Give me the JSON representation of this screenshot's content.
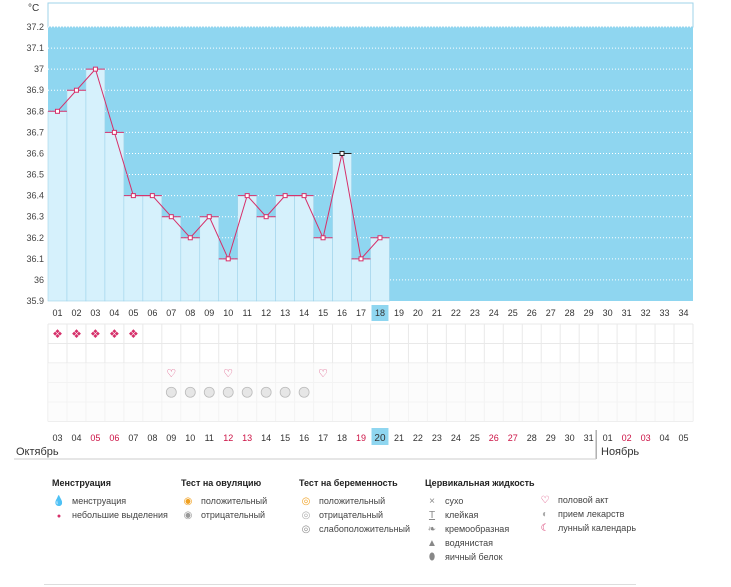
{
  "chart_data": {
    "type": "line",
    "ylabel": "°C",
    "ylim": [
      35.9,
      37.3
    ],
    "yticks": [
      "37.2",
      "37.1",
      "37",
      "36.9",
      "36.8",
      "36.7",
      "36.6",
      "36.5",
      "36.4",
      "36.3",
      "36.2",
      "36.1",
      "36",
      "35.9"
    ],
    "cycle_days": [
      "01",
      "02",
      "03",
      "04",
      "05",
      "06",
      "07",
      "08",
      "09",
      "10",
      "11",
      "12",
      "13",
      "14",
      "15",
      "16",
      "17",
      "18",
      "19",
      "20",
      "21",
      "22",
      "23",
      "24",
      "25",
      "26",
      "27",
      "28",
      "29",
      "30",
      "31",
      "32",
      "33",
      "34"
    ],
    "temperatures": [
      36.8,
      36.9,
      37.0,
      36.7,
      36.4,
      36.4,
      36.3,
      36.2,
      36.3,
      36.1,
      36.4,
      36.3,
      36.4,
      36.4,
      36.2,
      36.6,
      36.1,
      36.2
    ],
    "highlight_day_index": 17,
    "highlight_point_index": 15,
    "coverline_top": 37.2,
    "dates": [
      "03",
      "04",
      "05",
      "06",
      "07",
      "08",
      "09",
      "10",
      "11",
      "12",
      "13",
      "14",
      "15",
      "16",
      "17",
      "18",
      "19",
      "20",
      "21",
      "22",
      "23",
      "24",
      "25",
      "26",
      "27",
      "28",
      "29",
      "30",
      "31",
      "01",
      "02",
      "03",
      "04",
      "05"
    ],
    "red_date_indices": [
      2,
      3,
      9,
      10,
      16,
      23,
      24,
      30,
      31
    ],
    "highlight_date_index": 17,
    "months": [
      "Октябрь",
      "Ноябрь"
    ],
    "menstruation_days": [
      0,
      1,
      2,
      3,
      4
    ],
    "intercourse_days": [
      6,
      9,
      14
    ],
    "medication_days": [
      6,
      7,
      8,
      9,
      10,
      11,
      12,
      13
    ],
    "colors": {
      "sky": "#8fd6f0",
      "bar": "#d6f1fc",
      "bar_edge": "#9fd3ea",
      "line": "#d6306a",
      "highlight_cell": "#8fd6f0",
      "red_date": "#cc1144",
      "grid": "#e9e9e9"
    }
  },
  "legend": {
    "menstruation": {
      "title": "Менструация",
      "items": [
        "менструация",
        "небольшие выделения"
      ]
    },
    "ovulation": {
      "title": "Тест на овуляцию",
      "items": [
        "положительный",
        "отрицательный"
      ]
    },
    "pregnancy": {
      "title": "Тест на беременность",
      "items": [
        "положительный",
        "отрицательный",
        "слабоположительный"
      ]
    },
    "cervical": {
      "title": "Цервикальная жидкость",
      "items": [
        "сухо",
        "клейкая",
        "кремообразная",
        "водянистая",
        "яичный белок"
      ]
    },
    "other": {
      "items": [
        "половой акт",
        "прием лекарств",
        "лунный календарь"
      ]
    }
  }
}
